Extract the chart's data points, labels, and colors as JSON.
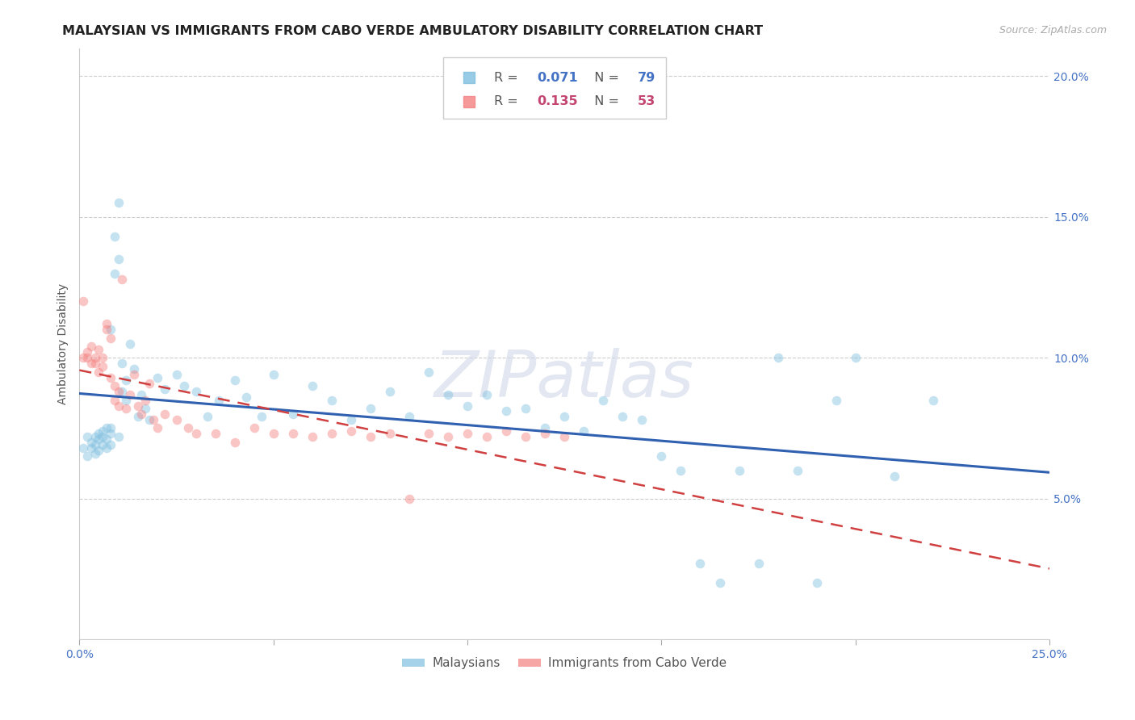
{
  "title": "MALAYSIAN VS IMMIGRANTS FROM CABO VERDE AMBULATORY DISABILITY CORRELATION CHART",
  "source": "Source: ZipAtlas.com",
  "ylabel": "Ambulatory Disability",
  "xlim": [
    0.0,
    0.25
  ],
  "ylim": [
    0.0,
    0.21
  ],
  "blue_color": "#7fbfdf",
  "pink_color": "#f48080",
  "line_blue_color": "#3060b0",
  "line_pink_color": "#d04040",
  "watermark_text": "ZIPatlas",
  "title_fontsize": 11.5,
  "axis_label_fontsize": 10,
  "tick_fontsize": 10,
  "legend_fontsize": 11,
  "source_fontsize": 9,
  "background_color": "#ffffff",
  "grid_color": "#cccccc",
  "scatter_size": 70,
  "scatter_alpha": 0.45,
  "blue_r": "0.071",
  "blue_n": "79",
  "pink_r": "0.135",
  "pink_n": "53",
  "blue_points_x": [
    0.001,
    0.002,
    0.002,
    0.003,
    0.003,
    0.004,
    0.004,
    0.004,
    0.005,
    0.005,
    0.005,
    0.006,
    0.006,
    0.006,
    0.007,
    0.007,
    0.007,
    0.008,
    0.008,
    0.008,
    0.008,
    0.009,
    0.009,
    0.01,
    0.01,
    0.01,
    0.011,
    0.011,
    0.012,
    0.012,
    0.013,
    0.014,
    0.015,
    0.016,
    0.017,
    0.018,
    0.02,
    0.022,
    0.025,
    0.027,
    0.03,
    0.033,
    0.036,
    0.04,
    0.043,
    0.047,
    0.05,
    0.055,
    0.06,
    0.065,
    0.07,
    0.075,
    0.08,
    0.085,
    0.09,
    0.095,
    0.1,
    0.105,
    0.11,
    0.115,
    0.12,
    0.125,
    0.13,
    0.135,
    0.14,
    0.145,
    0.15,
    0.155,
    0.16,
    0.165,
    0.17,
    0.175,
    0.18,
    0.185,
    0.19,
    0.195,
    0.2,
    0.21,
    0.22
  ],
  "blue_points_y": [
    0.068,
    0.072,
    0.065,
    0.07,
    0.068,
    0.072,
    0.069,
    0.066,
    0.073,
    0.071,
    0.067,
    0.074,
    0.069,
    0.072,
    0.075,
    0.071,
    0.068,
    0.073,
    0.069,
    0.075,
    0.11,
    0.143,
    0.13,
    0.135,
    0.155,
    0.072,
    0.098,
    0.088,
    0.092,
    0.085,
    0.105,
    0.096,
    0.079,
    0.087,
    0.082,
    0.078,
    0.093,
    0.089,
    0.094,
    0.09,
    0.088,
    0.079,
    0.085,
    0.092,
    0.086,
    0.079,
    0.094,
    0.08,
    0.09,
    0.085,
    0.078,
    0.082,
    0.088,
    0.079,
    0.095,
    0.087,
    0.083,
    0.087,
    0.081,
    0.082,
    0.075,
    0.079,
    0.074,
    0.085,
    0.079,
    0.078,
    0.065,
    0.06,
    0.027,
    0.02,
    0.06,
    0.027,
    0.1,
    0.06,
    0.02,
    0.085,
    0.1,
    0.058,
    0.085
  ],
  "pink_points_x": [
    0.001,
    0.001,
    0.002,
    0.002,
    0.003,
    0.003,
    0.004,
    0.004,
    0.005,
    0.005,
    0.006,
    0.006,
    0.007,
    0.007,
    0.008,
    0.008,
    0.009,
    0.009,
    0.01,
    0.01,
    0.011,
    0.012,
    0.013,
    0.014,
    0.015,
    0.016,
    0.017,
    0.018,
    0.019,
    0.02,
    0.022,
    0.025,
    0.028,
    0.03,
    0.035,
    0.04,
    0.045,
    0.05,
    0.055,
    0.06,
    0.065,
    0.07,
    0.075,
    0.08,
    0.085,
    0.09,
    0.095,
    0.1,
    0.105,
    0.11,
    0.115,
    0.12,
    0.125
  ],
  "pink_points_y": [
    0.12,
    0.1,
    0.102,
    0.1,
    0.098,
    0.104,
    0.1,
    0.098,
    0.103,
    0.095,
    0.1,
    0.097,
    0.112,
    0.11,
    0.107,
    0.093,
    0.09,
    0.085,
    0.088,
    0.083,
    0.128,
    0.082,
    0.087,
    0.094,
    0.083,
    0.08,
    0.085,
    0.091,
    0.078,
    0.075,
    0.08,
    0.078,
    0.075,
    0.073,
    0.073,
    0.07,
    0.075,
    0.073,
    0.073,
    0.072,
    0.073,
    0.074,
    0.072,
    0.073,
    0.05,
    0.073,
    0.072,
    0.073,
    0.072,
    0.074,
    0.072,
    0.073,
    0.072
  ]
}
